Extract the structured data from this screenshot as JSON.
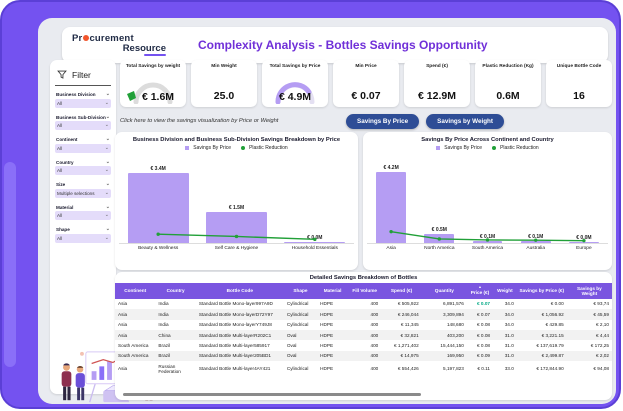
{
  "colors": {
    "frame_purple": "#7452f0",
    "accent_purple": "#8a6ff8",
    "panel_bg": "#e9ebf0",
    "title_purple": "#7030d8",
    "bar_purple": "#b59df3",
    "line_green": "#21a038",
    "price_green": "#00a884",
    "button_navy": "#2e4d96",
    "table_header_purple": "#7a55e0",
    "dropdown_lavender": "#e4dcfa",
    "logo_dot_orange": "#f2552c"
  },
  "logo": {
    "line1_pre": "Pr",
    "line1_post": "curement",
    "line2": "Resource"
  },
  "header": {
    "title": "Complexity Analysis - Bottles Savings Opportunity"
  },
  "sidebar": {
    "filter_title": "Filter",
    "filters": [
      {
        "label": "Business Division",
        "value": "All"
      },
      {
        "label": "Business Sub-Division",
        "value": "All"
      },
      {
        "label": "Continent",
        "value": "All"
      },
      {
        "label": "Country",
        "value": "All"
      },
      {
        "label": "Size",
        "value": "Multiple selections"
      },
      {
        "label": "Material",
        "value": "All"
      },
      {
        "label": "Shape",
        "value": "All"
      }
    ]
  },
  "kpis": [
    {
      "label": "Total Savings by weight",
      "value": "€ 1.6M",
      "gauge": "gray-arc-green-marker"
    },
    {
      "label": "Min Weight",
      "value": "25.0",
      "gauge": null
    },
    {
      "label": "Total Savings by Price",
      "value": "€ 4.9M",
      "gauge": "purple-arc"
    },
    {
      "label": "Min Price",
      "value": "€ 0.07",
      "gauge": null
    },
    {
      "label": "Spend (€)",
      "value": "€ 12.9M",
      "gauge": null
    },
    {
      "label": "Plastic Reduction (Kg)",
      "value": "0.6M",
      "gauge": null
    },
    {
      "label": "Unique Bottle Code",
      "value": "16",
      "gauge": null
    }
  ],
  "note": "Click here to view the savings visualization by Price or Weight",
  "buttons": [
    {
      "label": "Savings By Price"
    },
    {
      "label": "Savings by Weight"
    }
  ],
  "chart_data": [
    {
      "type": "bar",
      "title": "Business Division and Business Sub-Division Savings Breakdown by Price",
      "legend": [
        "Savings By Price",
        "Plastic Reduction"
      ],
      "legend_position": "top",
      "categories": [
        "Beauty & Wellness",
        "Self Care & Hygiene",
        "Household Essentials"
      ],
      "series": [
        {
          "name": "Savings By Price",
          "type": "bar",
          "color": "#b59df3",
          "values": [
            3.4,
            1.5,
            0.02
          ],
          "labels": [
            "€ 3.4M",
            "€ 1.5M",
            "€ 0.0M"
          ]
        },
        {
          "name": "Plastic Reduction",
          "type": "line",
          "color": "#21a038",
          "values": [
            0.33,
            0.22,
            0.08
          ]
        }
      ],
      "ylabel": "Savings (€M)",
      "ylim": [
        0,
        3.9
      ],
      "grid": false
    },
    {
      "type": "bar",
      "title": "Savings By Price Across Continent and Country",
      "legend": [
        "Savings By Price",
        "Plastic Reduction"
      ],
      "legend_position": "top",
      "categories": [
        "Asia",
        "North America",
        "South America",
        "Australia",
        "Europe"
      ],
      "series": [
        {
          "name": "Savings By Price",
          "type": "bar",
          "color": "#b59df3",
          "values": [
            4.2,
            0.5,
            0.12,
            0.1,
            0.03
          ],
          "labels": [
            "€ 4.2M",
            "€ 0.5M",
            "€ 0.1M",
            "€ 0.1M",
            "€ 0.0M"
          ]
        },
        {
          "name": "Plastic Reduction",
          "type": "line",
          "color": "#21a038",
          "values": [
            0.55,
            0.12,
            0.06,
            0.05,
            0.02
          ]
        }
      ],
      "ylabel": "Savings (€M)",
      "ylim": [
        0,
        4.7
      ],
      "grid": false
    }
  ],
  "table": {
    "title": "Detailed Savings Breakdown of Bottles",
    "columns": [
      "Continent",
      "Country",
      "Bottle Code",
      "Shape",
      "Material",
      "Fill Volume",
      "Spend (€)",
      "Quantity",
      "Price (€)",
      "Weight",
      "Savings by Price (€)",
      "Savings by Weight"
    ],
    "sorted_column_index": 8,
    "price_green_rows": [
      0
    ],
    "rows": [
      [
        "Asia",
        "India",
        "Standard Bottle Mono-layer997A9D",
        "Cylindrical",
        "HDPE",
        "400",
        "€ 505,922",
        "6,891,576",
        "€ 0.07",
        "34.0",
        "€ 0.00",
        "€ 93,74"
      ],
      [
        "Asia",
        "India",
        "Standard Bottle Mono-layerD72Y97",
        "Cylindrical",
        "HDPE",
        "400",
        "€ 246,044",
        "3,309,894",
        "€ 0.07",
        "34.0",
        "€ 1,056.92",
        "€ 45,59"
      ],
      [
        "Asia",
        "India",
        "Standard Bottle Mono-layerY749J8",
        "Cylindrical",
        "HDPE",
        "400",
        "€ 11,345",
        "148,680",
        "€ 0.08",
        "34.0",
        "€ 429.85",
        "€ 2,10"
      ],
      [
        "Asia",
        "China",
        "Standard Bottle Multi-layerR202C1",
        "Oval",
        "HDPE",
        "400",
        "€ 32,821",
        "403,200",
        "€ 0.08",
        "31.0",
        "€ 3,221.15",
        "€ 4,44"
      ],
      [
        "South America",
        "Brazil",
        "Standard Bottle Multi-layer585917",
        "Oval",
        "HDPE",
        "400",
        "€ 1,271,402",
        "15,444,150",
        "€ 0.08",
        "31.0",
        "€ 137,619.79",
        "€ 172,25"
      ],
      [
        "South America",
        "Brazil",
        "Standard Bottle Multi-layer205BD1",
        "Oval",
        "HDPE",
        "400",
        "€ 14,975",
        "169,950",
        "€ 0.09",
        "31.0",
        "€ 2,499.87",
        "€ 2,02"
      ],
      [
        "Asia",
        "Russian Federation",
        "Standard Bottle Multi-layer4AY421",
        "Cylindrical",
        "HDPE",
        "400",
        "€ 554,426",
        "5,197,823",
        "€ 0.11",
        "33.0",
        "€ 172,844.90",
        "€ 94,08"
      ]
    ]
  }
}
